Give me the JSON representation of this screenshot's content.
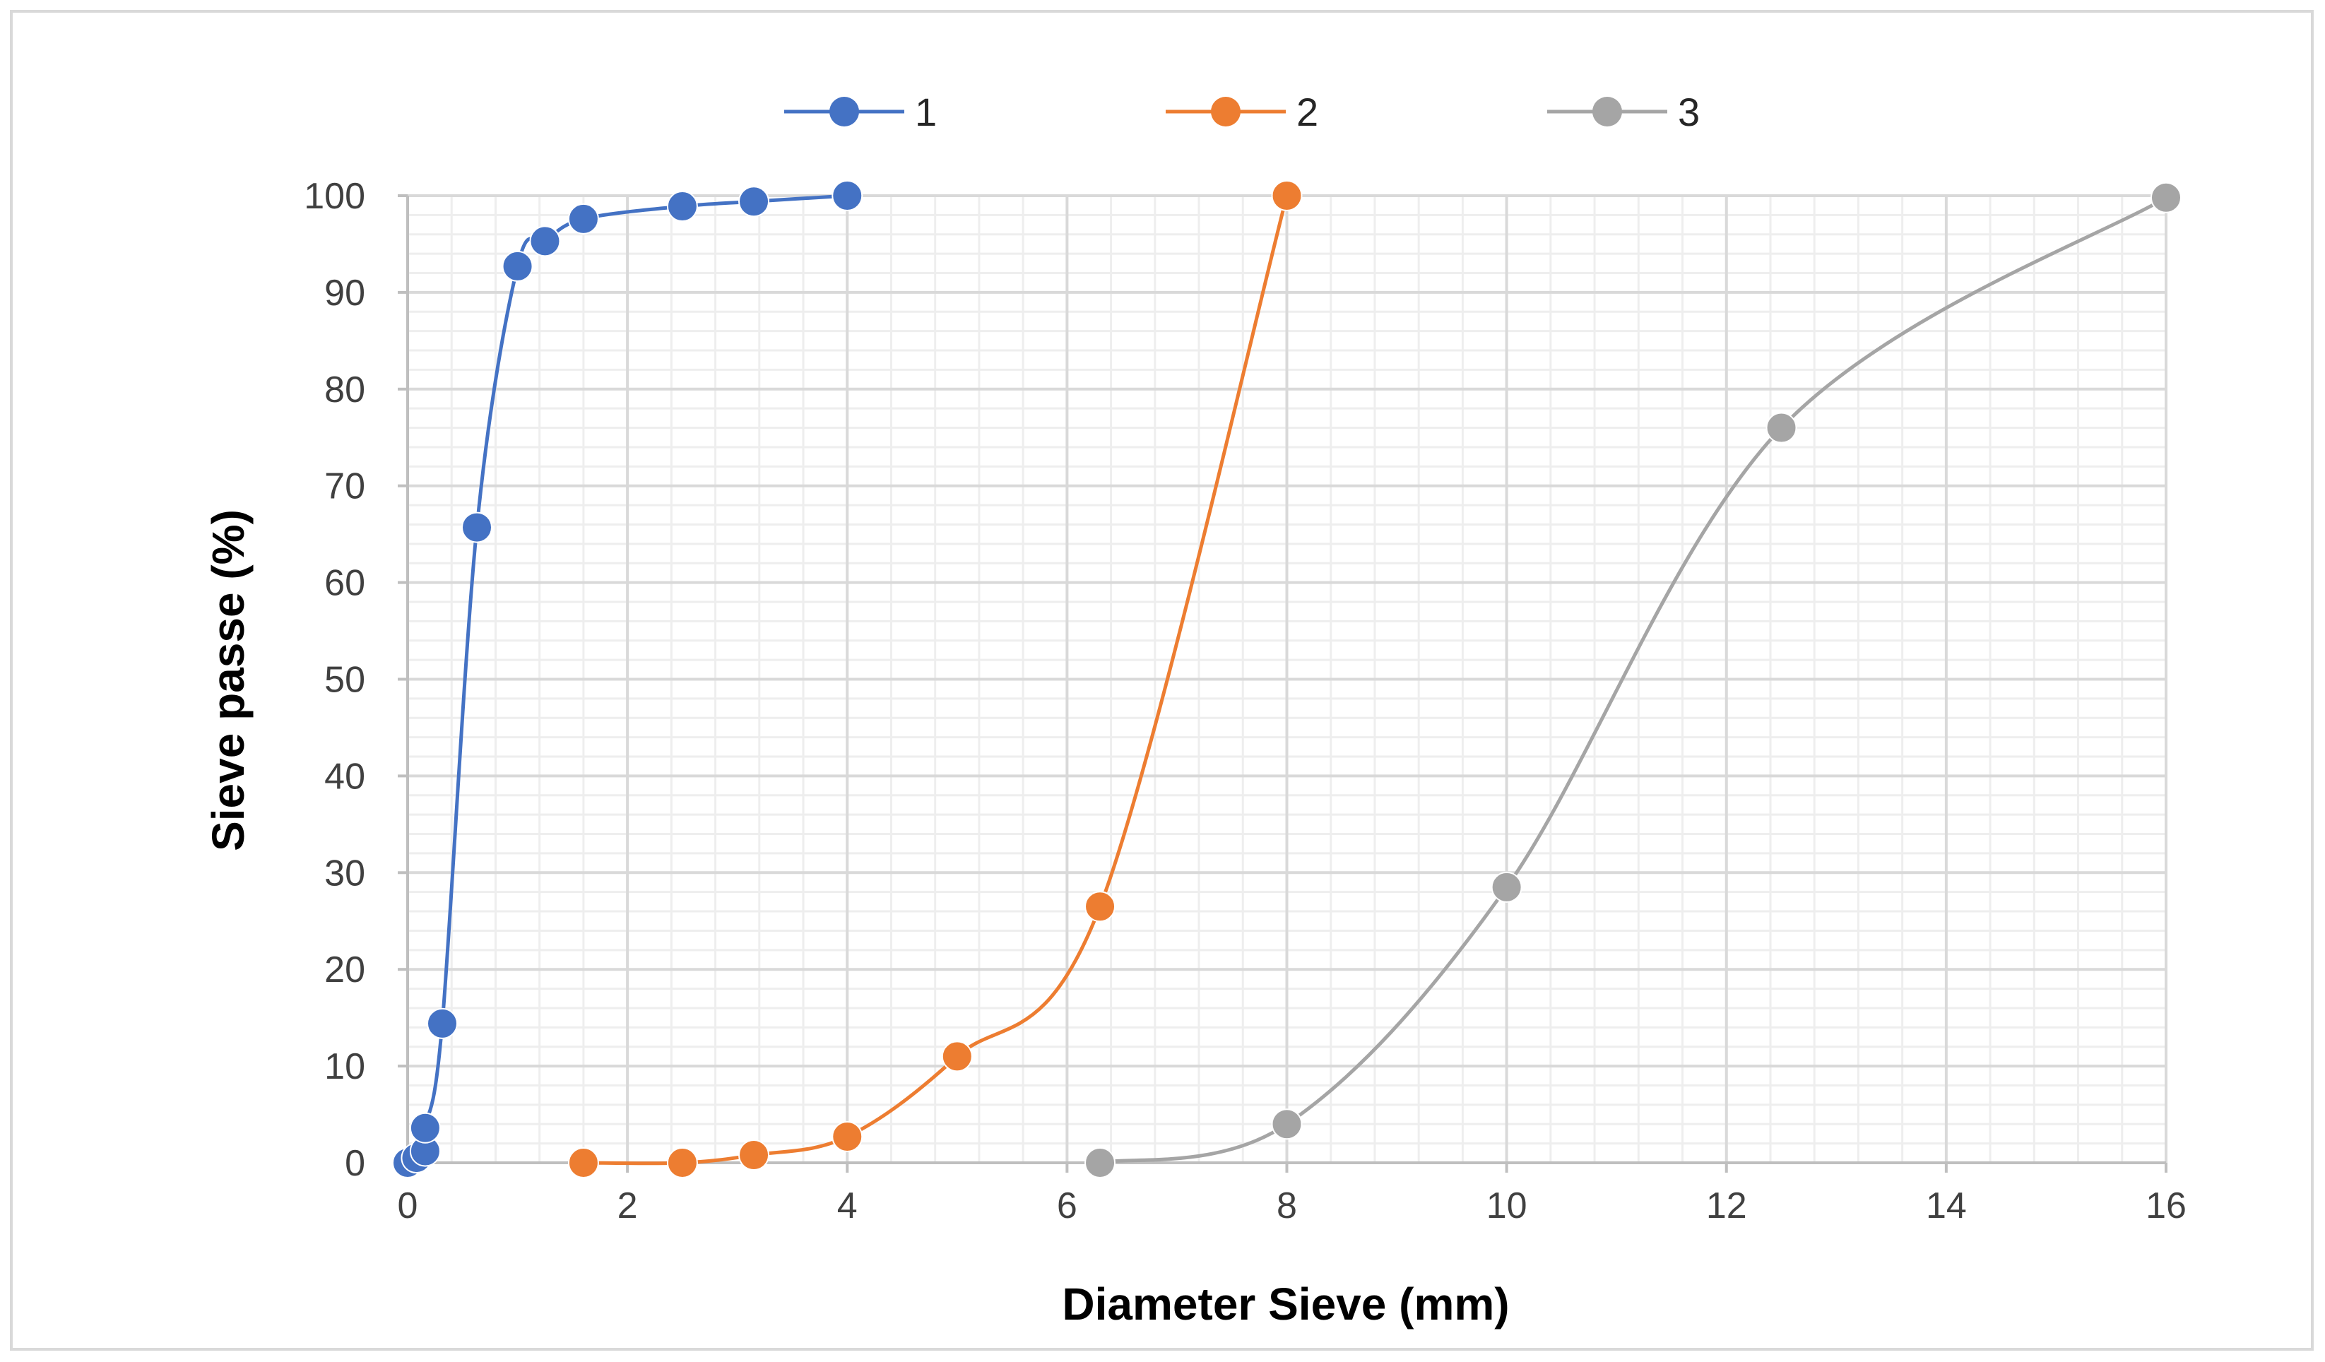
{
  "chart_data": {
    "type": "line",
    "xlabel": "Diameter Sieve (mm)",
    "ylabel": "Sieve passe (%)",
    "xlim": [
      0,
      16
    ],
    "ylim": [
      0,
      100
    ],
    "x_ticks": [
      0,
      2,
      4,
      6,
      8,
      10,
      12,
      14,
      16
    ],
    "y_ticks": [
      0,
      10,
      20,
      30,
      40,
      50,
      60,
      70,
      80,
      90,
      100
    ],
    "grid": true,
    "smooth": true,
    "legend_position": "top",
    "series": [
      {
        "name": "1",
        "color": "#4472c4",
        "x": [
          0,
          0.08,
          0.16,
          0.16,
          0.315,
          0.63,
          1.0,
          1.25,
          1.6,
          2.5,
          3.15,
          4.0
        ],
        "y": [
          0,
          0.5,
          1.2,
          3.6,
          14.4,
          65.7,
          92.7,
          95.3,
          97.6,
          98.9,
          99.4,
          100
        ]
      },
      {
        "name": "2",
        "color": "#ed7d31",
        "x": [
          1.6,
          2.5,
          3.15,
          4.0,
          5.0,
          6.3,
          8.0
        ],
        "y": [
          0,
          0,
          0.8,
          2.7,
          11.0,
          26.5,
          100
        ]
      },
      {
        "name": "3",
        "color": "#a5a5a5",
        "x": [
          6.3,
          8.0,
          10.0,
          12.5,
          16.0
        ],
        "y": [
          0,
          4.0,
          28.5,
          76.0,
          99.8
        ]
      }
    ]
  }
}
